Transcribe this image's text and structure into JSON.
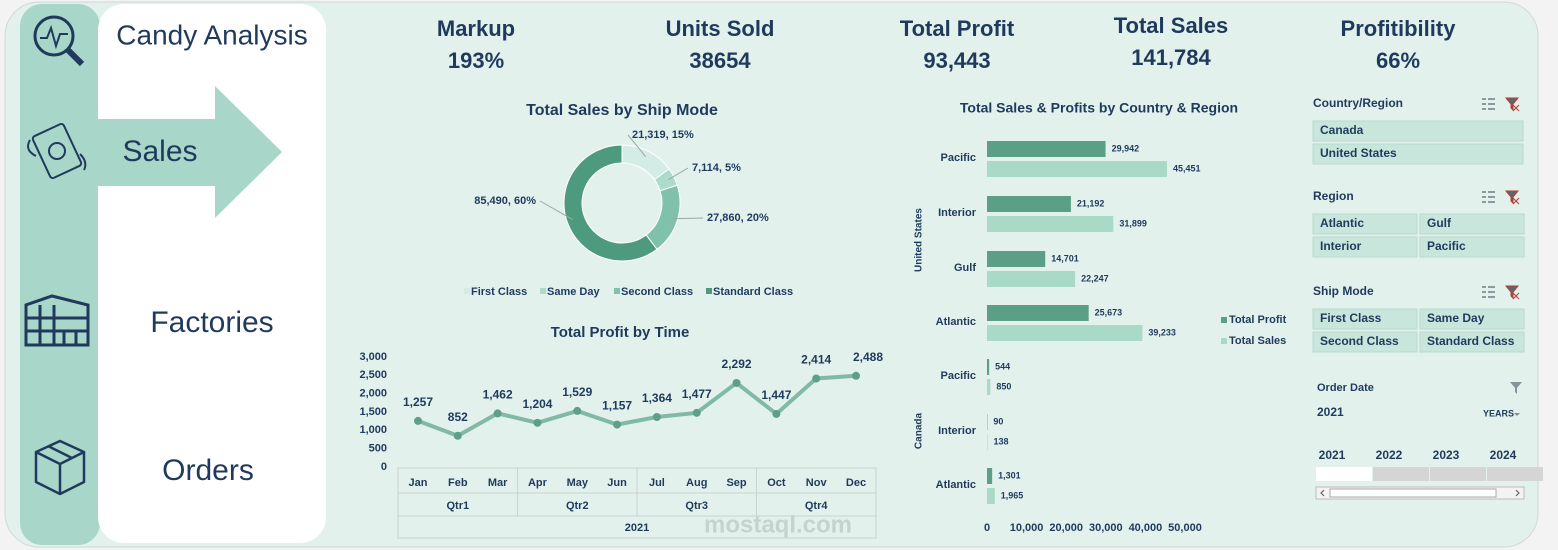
{
  "nav": {
    "title": "Candy Analysis",
    "items": [
      "Sales",
      "Factories",
      "Orders"
    ]
  },
  "kpis": [
    {
      "label": "Markup",
      "value": "193%"
    },
    {
      "label": "Units Sold",
      "value": "38654"
    },
    {
      "label": "Total Profit",
      "value": "93,443"
    },
    {
      "label": "Total Sales",
      "value": "141,784"
    },
    {
      "label": "Profitibility",
      "value": "66%"
    }
  ],
  "chart_data": [
    {
      "type": "donut",
      "title": "Total Sales by Ship Mode",
      "categories": [
        "First Class",
        "Same Day",
        "Second Class",
        "Standard Class"
      ],
      "values": [
        21319,
        7114,
        27860,
        85490
      ],
      "value_labels": [
        "21,319, 15%",
        "7,114, 5%",
        "27,860, 20%",
        "85,490, 60%"
      ],
      "colors": [
        "#d3ece5",
        "#acdacb",
        "#7fc1aa",
        "#4e9a7f"
      ],
      "legend": "bottom"
    },
    {
      "type": "line",
      "title": "Total Profit by Time",
      "categories": [
        "Jan",
        "Feb",
        "Mar",
        "Apr",
        "May",
        "Jun",
        "Jul",
        "Aug",
        "Sep",
        "Oct",
        "Nov",
        "Dec"
      ],
      "values": [
        1257,
        852,
        1462,
        1204,
        1529,
        1157,
        1364,
        1477,
        2292,
        1447,
        2414,
        2488
      ],
      "value_labels": [
        "1,257",
        "852",
        "1,462",
        "1,204",
        "1,529",
        "1,157",
        "1,364",
        "1,477",
        "2,292",
        "1,447",
        "2,414",
        "2,488"
      ],
      "groups": [
        "Qtr1",
        "Qtr2",
        "Qtr3",
        "Qtr4"
      ],
      "year": "2021",
      "color": "#80b9a6",
      "marker_color": "#5f9f88",
      "ylim": [
        0,
        3000
      ],
      "yticks": [
        0,
        500,
        {
          "value": 1000,
          "label": "1,000"
        },
        {
          "value": 1500,
          "label": "1,500"
        },
        {
          "value": 2000,
          "label": "2,000"
        },
        {
          "value": 2500,
          "label": "2,500"
        },
        {
          "value": 3000,
          "label": "3,000"
        }
      ]
    },
    {
      "type": "hbar",
      "title": "Total Sales & Profits by Country & Region",
      "groups": [
        {
          "label": "United States",
          "categories": [
            "Pacific",
            "Interior",
            "Gulf",
            "Atlantic"
          ]
        },
        {
          "label": "Canada",
          "categories": [
            "Pacific",
            "Interior",
            "Atlantic"
          ]
        }
      ],
      "series": [
        {
          "name": "Total Profit",
          "color": "#5c9f87",
          "values": [
            29942,
            21192,
            14701,
            25673,
            544,
            90,
            1301
          ],
          "value_labels": [
            "29,942",
            "21,192",
            "14,701",
            "25,673",
            "544",
            "90",
            "1,301"
          ]
        },
        {
          "name": "Total Sales",
          "color": "#a9d9c7",
          "values": [
            45451,
            31899,
            22247,
            39233,
            850,
            138,
            1965
          ],
          "value_labels": [
            "45,451",
            "31,899",
            "22,247",
            "39,233",
            "850",
            "138",
            "1,965"
          ]
        }
      ],
      "xlim": [
        0,
        50000
      ],
      "xticks": [
        0,
        {
          "value": 10000,
          "label": "10,000"
        },
        {
          "value": 20000,
          "label": "20,000"
        },
        {
          "value": 30000,
          "label": "30,000"
        },
        {
          "value": 40000,
          "label": "40,000"
        },
        {
          "value": 50000,
          "label": "50,000"
        }
      ],
      "legend": "right"
    }
  ],
  "slicers": [
    {
      "title": "Country/Region",
      "items": [
        "Canada",
        "United States"
      ]
    },
    {
      "title": "Region",
      "items": [
        "Atlantic",
        "Gulf",
        "Interior",
        "Pacific"
      ]
    },
    {
      "title": "Ship Mode",
      "items": [
        "First Class",
        "Same Day",
        "Second Class",
        "Standard Class"
      ]
    }
  ],
  "timeline": {
    "title": "Order Date",
    "selection": "2021",
    "level": "YEARS",
    "years": [
      "2021",
      "2022",
      "2023",
      "2024"
    ]
  },
  "watermark": "mostaql.com"
}
